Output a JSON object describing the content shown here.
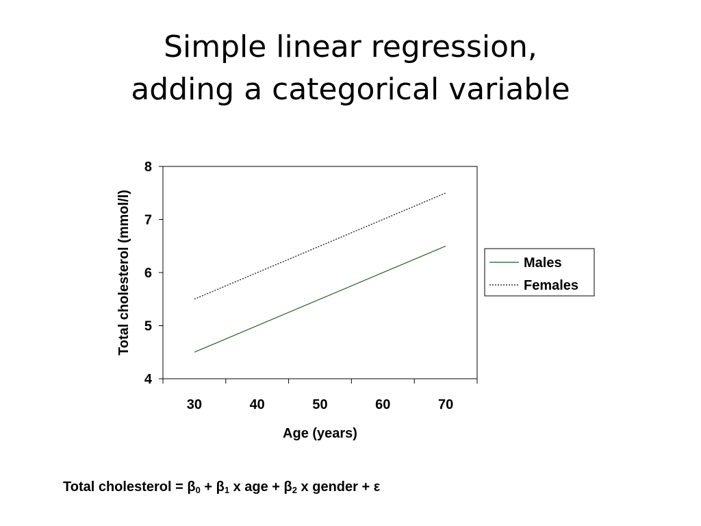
{
  "slide": {
    "title_line1": "Simple linear regression,",
    "title_line2": "adding a categorical variable"
  },
  "formula": {
    "lhs": "Total cholesterol",
    "eq": " = ",
    "beta": "β",
    "sub0": "0",
    "plus1": " + ",
    "sub1": "1",
    "term1": " x age + ",
    "sub2": "2",
    "term2": " x gender + ε"
  },
  "chart_data": {
    "type": "line",
    "title": "",
    "xlabel": "Age (years)",
    "ylabel": "Total cholesterol (mmol/l)",
    "xlim": [
      25,
      75
    ],
    "ylim": [
      4,
      8
    ],
    "xticks": [
      30,
      40,
      50,
      60,
      70
    ],
    "yticks": [
      4,
      5,
      6,
      7,
      8
    ],
    "grid": false,
    "legend_position": "right",
    "series": [
      {
        "name": "Males",
        "x": [
          30,
          70
        ],
        "y": [
          4.5,
          6.5
        ],
        "color": "#1f5a1f",
        "style": "solid"
      },
      {
        "name": "Females",
        "x": [
          30,
          70
        ],
        "y": [
          5.5,
          7.5
        ],
        "color": "#000000",
        "style": "dotted"
      }
    ]
  }
}
